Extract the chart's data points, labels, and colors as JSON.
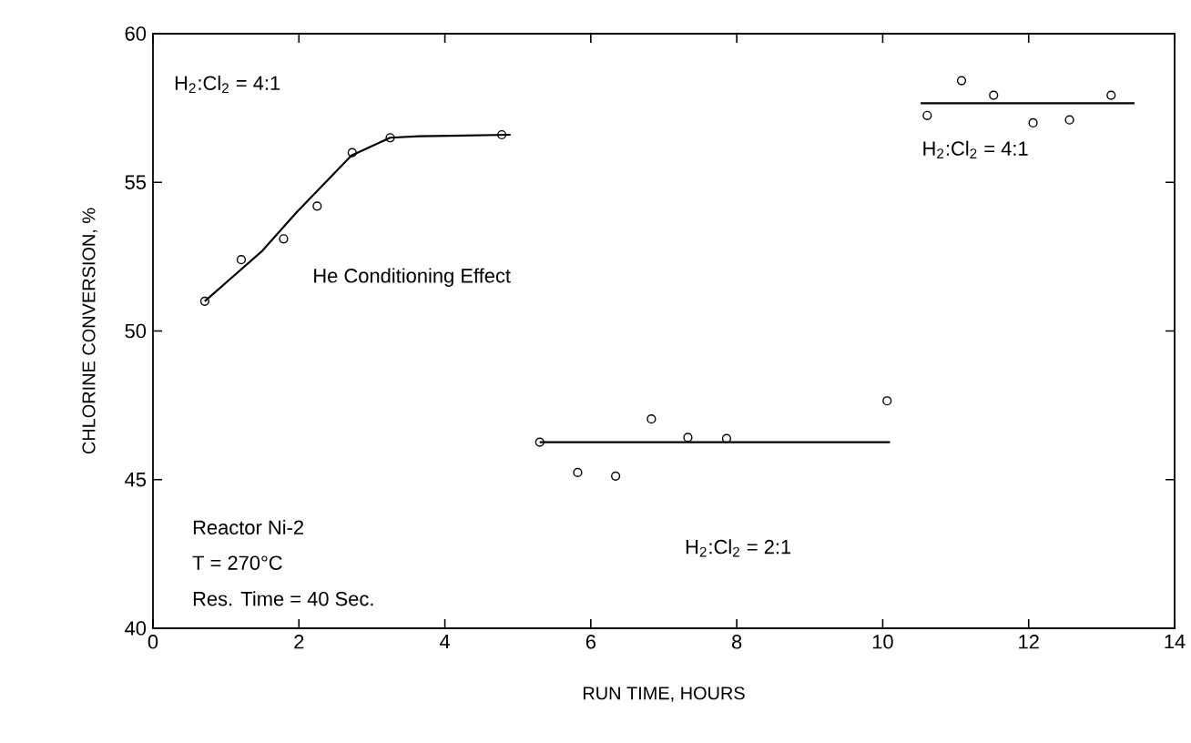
{
  "chart_data": {
    "type": "scatter",
    "xlabel": "RUN TIME, HOURS",
    "ylabel": "CHLORINE CONVERSION, %",
    "xlim": [
      0,
      14
    ],
    "ylim": [
      40,
      60
    ],
    "xticks": [
      0,
      2,
      4,
      6,
      8,
      10,
      12,
      14
    ],
    "yticks": [
      40,
      45,
      50,
      55,
      60
    ],
    "marker": "circle",
    "annotations": [
      "H$_{2}$:Cl$_{2}$ = 4:1",
      "He Conditioning Effect",
      "Reactor Ni-2",
      "T = 270°C",
      "Res. Time = 40 Sec.",
      "H$_{2}$:Cl$_{2}$ = 2:1",
      "H$_{2}$:Cl$_{2}$ = 4:1"
    ],
    "series": [
      {
        "color": "#000000",
        "x": [
          0.71,
          1.21,
          1.79,
          2.25,
          2.73,
          3.25,
          4.78
        ],
        "values": [
          51.0,
          52.4,
          53.1,
          54.2,
          56.0,
          56.5,
          56.6
        ]
      },
      {
        "type": "line",
        "color": "#000000",
        "marker": "none",
        "x": [
          0.71,
          1.5,
          1.97,
          2.72,
          3.25,
          3.64,
          4.9
        ],
        "values": [
          51.0,
          52.7,
          54.0,
          55.9,
          56.5,
          56.55,
          56.6
        ]
      },
      {
        "color": "#000000",
        "x": [
          5.3,
          5.82,
          6.34,
          6.83,
          7.33,
          7.86,
          10.06
        ],
        "values": [
          46.26,
          45.24,
          45.12,
          47.04,
          46.42,
          46.38,
          47.65
        ]
      },
      {
        "type": "line",
        "color": "#000000",
        "marker": "none",
        "x": [
          5.3,
          10.1
        ],
        "values": [
          46.26,
          46.26
        ]
      },
      {
        "color": "#000000",
        "x": [
          10.61,
          11.08,
          11.52,
          12.06,
          12.56,
          13.13
        ],
        "values": [
          57.25,
          58.42,
          57.93,
          57.0,
          57.1,
          57.93
        ]
      },
      {
        "type": "line",
        "color": "#000000",
        "marker": "none",
        "x": [
          10.52,
          13.45
        ],
        "values": [
          57.66,
          57.66
        ]
      }
    ]
  }
}
